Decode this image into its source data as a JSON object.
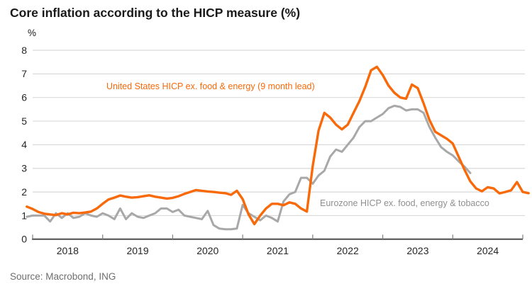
{
  "title": "Core inflation according to the HICP measure (%)",
  "source": "Source: Macrobond, ING",
  "y_axis": {
    "unit": "%",
    "ticks": [
      0,
      1,
      2,
      3,
      4,
      5,
      6,
      7,
      8
    ]
  },
  "x_axis": {
    "years": [
      "2018",
      "2019",
      "2020",
      "2021",
      "2022",
      "2023",
      "2024"
    ]
  },
  "colors": {
    "us_line": "#f8690a",
    "eurozone_line": "#a8a8a8",
    "eurozone_label": "#8f8f8f",
    "gridline": "#d9d9d9",
    "axis_line": "#4d4d4d",
    "tick_mark": "#7f7f7f",
    "axis_text": "#262626",
    "title_text": "#1a1a1a",
    "source_text": "#6e6e6e"
  },
  "chart_data": {
    "type": "line",
    "title": "Core inflation according to the HICP measure (%)",
    "ylabel": "%",
    "ylim": [
      0,
      8
    ],
    "grid": "horizontal",
    "legend_position": "inline-annotations",
    "x_tick_years": [
      "2018",
      "2019",
      "2020",
      "2021",
      "2022",
      "2023",
      "2024"
    ],
    "frequency": "monthly",
    "series": [
      {
        "name": "United States HICP ex. food & energy (9 month lead)",
        "color": "#f8690a",
        "start": "2017-12",
        "values": [
          1.38,
          1.28,
          1.15,
          1.08,
          1.05,
          1.02,
          1.1,
          1.05,
          1.12,
          1.1,
          1.13,
          1.17,
          1.3,
          1.5,
          1.68,
          1.76,
          1.85,
          1.8,
          1.76,
          1.78,
          1.82,
          1.86,
          1.8,
          1.76,
          1.72,
          1.75,
          1.82,
          1.92,
          2.0,
          2.08,
          2.05,
          2.02,
          2.0,
          1.97,
          1.95,
          1.88,
          2.05,
          1.7,
          1.05,
          0.64,
          1.0,
          1.3,
          1.5,
          1.5,
          1.44,
          1.56,
          1.5,
          1.3,
          1.17,
          3.1,
          4.6,
          5.35,
          5.15,
          4.85,
          4.65,
          4.85,
          5.35,
          5.85,
          6.45,
          7.15,
          7.3,
          6.95,
          6.5,
          6.2,
          6.0,
          5.95,
          6.55,
          6.4,
          5.75,
          5.05,
          4.55,
          4.4,
          4.25,
          4.05,
          3.5,
          2.95,
          2.45,
          2.15,
          2.03,
          2.2,
          2.15,
          1.94,
          2.0,
          2.07,
          2.42,
          2.0,
          1.95
        ]
      },
      {
        "name": "Eurozone HICP ex. food, energy & tobacco",
        "color": "#a8a8a8",
        "start": "2017-12",
        "values": [
          0.95,
          1.0,
          1.0,
          1.0,
          0.75,
          1.1,
          0.9,
          1.1,
          0.9,
          0.95,
          1.1,
          1.0,
          0.95,
          1.1,
          1.0,
          0.85,
          1.3,
          0.85,
          1.1,
          0.95,
          0.9,
          1.0,
          1.1,
          1.3,
          1.3,
          1.15,
          1.25,
          1.0,
          0.95,
          0.9,
          0.85,
          1.2,
          0.6,
          0.45,
          0.42,
          0.42,
          0.45,
          1.45,
          1.1,
          0.95,
          0.8,
          1.0,
          0.9,
          0.75,
          1.6,
          1.9,
          2.0,
          2.6,
          2.6,
          2.35,
          2.7,
          2.9,
          3.5,
          3.8,
          3.7,
          4.0,
          4.3,
          4.75,
          5.0,
          5.0,
          5.15,
          5.3,
          5.55,
          5.65,
          5.6,
          5.45,
          5.5,
          5.5,
          5.35,
          4.75,
          4.3,
          3.9,
          3.7,
          3.55,
          3.3,
          3.08,
          2.8
        ]
      }
    ]
  }
}
